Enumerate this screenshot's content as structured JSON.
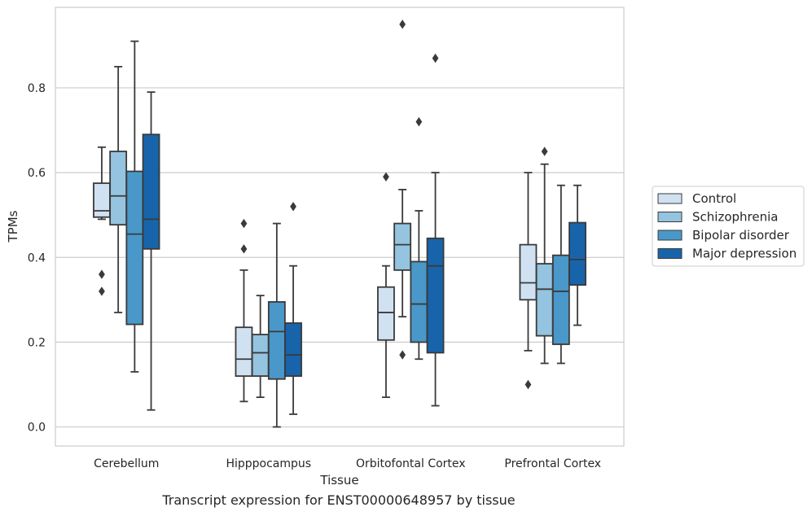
{
  "chart_data": {
    "type": "box",
    "xlabel": "Tissue",
    "ylabel": "TPMs",
    "caption": "Transcript expression for ENST00000648957 by tissue",
    "categories": [
      "Cerebellum",
      "Hipppocampus",
      "Orbitofontal Cortex",
      "Prefrontal Cortex"
    ],
    "ylim": [
      -0.045,
      0.99
    ],
    "yticks": [
      0.0,
      0.2,
      0.4,
      0.6,
      0.8
    ],
    "grid": "horizontal",
    "legend_position": "right",
    "series": [
      {
        "name": "Control",
        "color": "#d0e1f2",
        "boxes": [
          {
            "whislo": 0.49,
            "q1": 0.495,
            "med": 0.51,
            "q3": 0.575,
            "whishi": 0.66,
            "fliers": [
              0.36,
              0.32
            ]
          },
          {
            "whislo": 0.06,
            "q1": 0.12,
            "med": 0.16,
            "q3": 0.235,
            "whishi": 0.37,
            "fliers": [
              0.48,
              0.42
            ]
          },
          {
            "whislo": 0.07,
            "q1": 0.205,
            "med": 0.27,
            "q3": 0.33,
            "whishi": 0.38,
            "fliers": [
              0.59
            ]
          },
          {
            "whislo": 0.18,
            "q1": 0.3,
            "med": 0.34,
            "q3": 0.43,
            "whishi": 0.6,
            "fliers": [
              0.1
            ]
          }
        ]
      },
      {
        "name": "Schizophrenia",
        "color": "#94c4df",
        "boxes": [
          {
            "whislo": 0.27,
            "q1": 0.477,
            "med": 0.545,
            "q3": 0.65,
            "whishi": 0.85,
            "fliers": []
          },
          {
            "whislo": 0.07,
            "q1": 0.12,
            "med": 0.175,
            "q3": 0.218,
            "whishi": 0.31,
            "fliers": []
          },
          {
            "whislo": 0.26,
            "q1": 0.37,
            "med": 0.43,
            "q3": 0.48,
            "whishi": 0.56,
            "fliers": [
              0.95,
              0.17
            ]
          },
          {
            "whislo": 0.15,
            "q1": 0.215,
            "med": 0.325,
            "q3": 0.385,
            "whishi": 0.62,
            "fliers": [
              0.65
            ]
          }
        ]
      },
      {
        "name": "Bipolar disorder",
        "color": "#4a98c9",
        "boxes": [
          {
            "whislo": 0.13,
            "q1": 0.242,
            "med": 0.455,
            "q3": 0.603,
            "whishi": 0.91,
            "fliers": []
          },
          {
            "whislo": 0.0,
            "q1": 0.113,
            "med": 0.225,
            "q3": 0.295,
            "whishi": 0.48,
            "fliers": []
          },
          {
            "whislo": 0.16,
            "q1": 0.2,
            "med": 0.29,
            "q3": 0.39,
            "whishi": 0.51,
            "fliers": [
              0.72
            ]
          },
          {
            "whislo": 0.15,
            "q1": 0.195,
            "med": 0.32,
            "q3": 0.405,
            "whishi": 0.57,
            "fliers": []
          }
        ]
      },
      {
        "name": "Major depression",
        "color": "#1764ab",
        "boxes": [
          {
            "whislo": 0.04,
            "q1": 0.42,
            "med": 0.49,
            "q3": 0.69,
            "whishi": 0.79,
            "fliers": []
          },
          {
            "whislo": 0.03,
            "q1": 0.12,
            "med": 0.17,
            "q3": 0.245,
            "whishi": 0.38,
            "fliers": [
              0.52
            ]
          },
          {
            "whislo": 0.05,
            "q1": 0.175,
            "med": 0.38,
            "q3": 0.445,
            "whishi": 0.6,
            "fliers": [
              0.87
            ]
          },
          {
            "whislo": 0.24,
            "q1": 0.335,
            "med": 0.395,
            "q3": 0.482,
            "whishi": 0.57,
            "fliers": []
          }
        ]
      }
    ]
  }
}
